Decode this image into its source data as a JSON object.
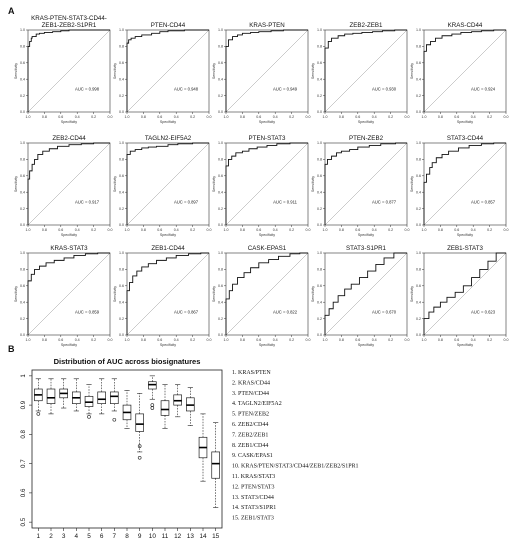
{
  "panel_a_label": "A",
  "panel_b_label": "B",
  "chart_data": [
    {
      "type": "line",
      "panel": "A",
      "xlabel": "Specificity",
      "ylabel": "Sensitivity",
      "xlim": [
        1.0,
        0.0
      ],
      "ylim": [
        0.0,
        1.0
      ],
      "x_ticks": [
        "1.0",
        "0.8",
        "0.6",
        "0.4",
        "0.2",
        "0.0"
      ],
      "y_ticks": [
        "0.0",
        "0.2",
        "0.4",
        "0.6",
        "0.8",
        "1.0"
      ],
      "rocs": [
        {
          "title": "KRAS-PTEN-STAT3-CD44-\nZEB1-ZEB2-S1PR1",
          "auc": "AUC = 0.998",
          "points": [
            [
              1,
              0
            ],
            [
              1,
              0.62
            ],
            [
              0.98,
              0.8
            ],
            [
              0.96,
              0.86
            ],
            [
              0.95,
              0.9
            ],
            [
              0.9,
              0.92
            ],
            [
              0.86,
              0.95
            ],
            [
              0.8,
              0.96
            ],
            [
              0.7,
              0.97
            ],
            [
              0.6,
              0.98
            ],
            [
              0.5,
              0.99
            ],
            [
              0.3,
              1
            ],
            [
              0,
              1
            ]
          ]
        },
        {
          "title": "PTEN-CD44",
          "auc": "AUC = 0.948",
          "points": [
            [
              1,
              0
            ],
            [
              1,
              0.72
            ],
            [
              0.98,
              0.84
            ],
            [
              0.95,
              0.88
            ],
            [
              0.9,
              0.9
            ],
            [
              0.82,
              0.92
            ],
            [
              0.7,
              0.94
            ],
            [
              0.6,
              0.96
            ],
            [
              0.5,
              0.98
            ],
            [
              0.3,
              0.99
            ],
            [
              0.15,
              1
            ],
            [
              0,
              1
            ]
          ]
        },
        {
          "title": "KRAS-PTEN",
          "auc": "AUC = 0.949",
          "points": [
            [
              1,
              0
            ],
            [
              1,
              0.66
            ],
            [
              0.97,
              0.8
            ],
            [
              0.92,
              0.88
            ],
            [
              0.86,
              0.92
            ],
            [
              0.8,
              0.94
            ],
            [
              0.7,
              0.96
            ],
            [
              0.6,
              0.97
            ],
            [
              0.45,
              0.98
            ],
            [
              0.3,
              0.99
            ],
            [
              0.1,
              1
            ],
            [
              0,
              1
            ]
          ]
        },
        {
          "title": "ZEB2-ZEB1",
          "auc": "AUC = 0.930",
          "points": [
            [
              1,
              0
            ],
            [
              1,
              0.7
            ],
            [
              0.96,
              0.78
            ],
            [
              0.92,
              0.86
            ],
            [
              0.84,
              0.9
            ],
            [
              0.76,
              0.93
            ],
            [
              0.66,
              0.95
            ],
            [
              0.55,
              0.96
            ],
            [
              0.42,
              0.97
            ],
            [
              0.3,
              0.98
            ],
            [
              0.15,
              0.99
            ],
            [
              0,
              1
            ]
          ]
        },
        {
          "title": "KRAS-CD44",
          "auc": "AUC = 0.924",
          "points": [
            [
              1,
              0
            ],
            [
              1,
              0.62
            ],
            [
              0.97,
              0.74
            ],
            [
              0.92,
              0.82
            ],
            [
              0.86,
              0.86
            ],
            [
              0.78,
              0.9
            ],
            [
              0.66,
              0.93
            ],
            [
              0.55,
              0.95
            ],
            [
              0.42,
              0.97
            ],
            [
              0.3,
              0.98
            ],
            [
              0.15,
              0.99
            ],
            [
              0,
              1
            ]
          ]
        },
        {
          "title": "ZEB2-CD44",
          "auc": "AUC = 0.917",
          "points": [
            [
              1,
              0
            ],
            [
              1,
              0.4
            ],
            [
              0.98,
              0.56
            ],
            [
              0.95,
              0.66
            ],
            [
              0.92,
              0.74
            ],
            [
              0.88,
              0.8
            ],
            [
              0.82,
              0.86
            ],
            [
              0.74,
              0.9
            ],
            [
              0.64,
              0.93
            ],
            [
              0.5,
              0.96
            ],
            [
              0.35,
              0.98
            ],
            [
              0.2,
              0.99
            ],
            [
              0,
              1
            ]
          ]
        },
        {
          "title": "TAGLN2-EIF5A2",
          "auc": "AUC = 0.897",
          "points": [
            [
              1,
              0
            ],
            [
              1,
              0.78
            ],
            [
              0.96,
              0.86
            ],
            [
              0.9,
              0.9
            ],
            [
              0.82,
              0.92
            ],
            [
              0.74,
              0.94
            ],
            [
              0.64,
              0.95
            ],
            [
              0.5,
              0.96
            ],
            [
              0.38,
              0.98
            ],
            [
              0.2,
              0.99
            ],
            [
              0,
              1
            ]
          ]
        },
        {
          "title": "PTEN-STAT3",
          "auc": "AUC = 0.911",
          "points": [
            [
              1,
              0
            ],
            [
              1,
              0.58
            ],
            [
              0.97,
              0.72
            ],
            [
              0.93,
              0.8
            ],
            [
              0.88,
              0.84
            ],
            [
              0.8,
              0.88
            ],
            [
              0.72,
              0.9
            ],
            [
              0.62,
              0.93
            ],
            [
              0.5,
              0.95
            ],
            [
              0.38,
              0.97
            ],
            [
              0.22,
              0.99
            ],
            [
              0,
              1
            ]
          ]
        },
        {
          "title": "PTEN-ZEB2",
          "auc": "AUC = 0.877",
          "points": [
            [
              1,
              0
            ],
            [
              1,
              0.66
            ],
            [
              0.97,
              0.74
            ],
            [
              0.92,
              0.8
            ],
            [
              0.86,
              0.84
            ],
            [
              0.8,
              0.88
            ],
            [
              0.7,
              0.9
            ],
            [
              0.6,
              0.92
            ],
            [
              0.46,
              0.95
            ],
            [
              0.32,
              0.97
            ],
            [
              0.14,
              0.99
            ],
            [
              0,
              1
            ]
          ]
        },
        {
          "title": "STAT3-CD44",
          "auc": "AUC = 0.857",
          "points": [
            [
              1,
              0
            ],
            [
              1,
              0.38
            ],
            [
              0.97,
              0.52
            ],
            [
              0.93,
              0.62
            ],
            [
              0.9,
              0.7
            ],
            [
              0.85,
              0.76
            ],
            [
              0.78,
              0.82
            ],
            [
              0.7,
              0.86
            ],
            [
              0.58,
              0.9
            ],
            [
              0.45,
              0.94
            ],
            [
              0.3,
              0.97
            ],
            [
              0.15,
              0.99
            ],
            [
              0,
              1
            ]
          ]
        },
        {
          "title": "KRAS-STAT3",
          "auc": "AUC = 0.859",
          "points": [
            [
              1,
              0
            ],
            [
              1,
              0.5
            ],
            [
              0.96,
              0.66
            ],
            [
              0.92,
              0.74
            ],
            [
              0.86,
              0.8
            ],
            [
              0.78,
              0.84
            ],
            [
              0.68,
              0.88
            ],
            [
              0.56,
              0.91
            ],
            [
              0.44,
              0.94
            ],
            [
              0.3,
              0.97
            ],
            [
              0.15,
              0.99
            ],
            [
              0,
              1
            ]
          ]
        },
        {
          "title": "ZEB1-CD44",
          "auc": "AUC = 0.867",
          "points": [
            [
              1,
              0
            ],
            [
              1,
              0.4
            ],
            [
              0.97,
              0.54
            ],
            [
              0.93,
              0.64
            ],
            [
              0.88,
              0.72
            ],
            [
              0.82,
              0.78
            ],
            [
              0.74,
              0.83
            ],
            [
              0.64,
              0.87
            ],
            [
              0.52,
              0.91
            ],
            [
              0.4,
              0.94
            ],
            [
              0.25,
              0.97
            ],
            [
              0.1,
              0.99
            ],
            [
              0,
              1
            ]
          ]
        },
        {
          "title": "CASK-EPAS1",
          "auc": "AUC = 0.822",
          "points": [
            [
              1,
              0
            ],
            [
              1,
              0.3
            ],
            [
              0.96,
              0.44
            ],
            [
              0.92,
              0.54
            ],
            [
              0.86,
              0.62
            ],
            [
              0.78,
              0.7
            ],
            [
              0.7,
              0.76
            ],
            [
              0.6,
              0.82
            ],
            [
              0.48,
              0.88
            ],
            [
              0.36,
              0.92
            ],
            [
              0.22,
              0.96
            ],
            [
              0.1,
              0.99
            ],
            [
              0,
              1
            ]
          ]
        },
        {
          "title": "STAT3-S1PR1",
          "auc": "AUC = 0.670",
          "points": [
            [
              1,
              0
            ],
            [
              1,
              0.14
            ],
            [
              0.95,
              0.24
            ],
            [
              0.9,
              0.32
            ],
            [
              0.84,
              0.4
            ],
            [
              0.76,
              0.48
            ],
            [
              0.68,
              0.56
            ],
            [
              0.58,
              0.62
            ],
            [
              0.48,
              0.7
            ],
            [
              0.38,
              0.78
            ],
            [
              0.28,
              0.86
            ],
            [
              0.16,
              0.94
            ],
            [
              0,
              1
            ]
          ]
        },
        {
          "title": "ZEB1-STAT3",
          "auc": "AUC = 0.623",
          "points": [
            [
              1,
              0
            ],
            [
              1,
              0.12
            ],
            [
              0.94,
              0.2
            ],
            [
              0.88,
              0.28
            ],
            [
              0.8,
              0.34
            ],
            [
              0.72,
              0.4
            ],
            [
              0.62,
              0.46
            ],
            [
              0.52,
              0.52
            ],
            [
              0.42,
              0.6
            ],
            [
              0.32,
              0.7
            ],
            [
              0.22,
              0.8
            ],
            [
              0.12,
              0.9
            ],
            [
              0,
              1
            ]
          ]
        }
      ]
    },
    {
      "type": "box",
      "panel": "B",
      "title": "Distribution of AUC across biosignatures",
      "ylim": [
        0.48,
        1.02
      ],
      "y_ticks": [
        0.5,
        0.6,
        0.7,
        0.8,
        0.9,
        1.0
      ],
      "categories": [
        "1",
        "2",
        "3",
        "4",
        "5",
        "6",
        "7",
        "8",
        "9",
        "10",
        "11",
        "12",
        "13",
        "14",
        "15"
      ],
      "boxes": [
        {
          "whislo": 0.88,
          "q1": 0.915,
          "med": 0.935,
          "q3": 0.955,
          "whishi": 0.99,
          "fliers": [
            0.87
          ]
        },
        {
          "whislo": 0.87,
          "q1": 0.905,
          "med": 0.925,
          "q3": 0.955,
          "whishi": 0.99,
          "fliers": []
        },
        {
          "whislo": 0.89,
          "q1": 0.925,
          "med": 0.94,
          "q3": 0.955,
          "whishi": 0.99,
          "fliers": []
        },
        {
          "whislo": 0.88,
          "q1": 0.905,
          "med": 0.925,
          "q3": 0.945,
          "whishi": 0.99,
          "fliers": []
        },
        {
          "whislo": 0.87,
          "q1": 0.895,
          "med": 0.91,
          "q3": 0.93,
          "whishi": 0.97,
          "fliers": [
            0.86
          ]
        },
        {
          "whislo": 0.87,
          "q1": 0.905,
          "med": 0.92,
          "q3": 0.945,
          "whishi": 0.99,
          "fliers": []
        },
        {
          "whislo": 0.88,
          "q1": 0.905,
          "med": 0.93,
          "q3": 0.945,
          "whishi": 0.99,
          "fliers": [
            0.85
          ]
        },
        {
          "whislo": 0.82,
          "q1": 0.85,
          "med": 0.875,
          "q3": 0.9,
          "whishi": 0.95,
          "fliers": []
        },
        {
          "whislo": 0.74,
          "q1": 0.81,
          "med": 0.835,
          "q3": 0.87,
          "whishi": 0.94,
          "fliers": [
            0.72,
            0.76
          ]
        },
        {
          "whislo": 0.92,
          "q1": 0.955,
          "med": 0.97,
          "q3": 0.98,
          "whishi": 1.0,
          "fliers": [
            0.89,
            0.9
          ]
        },
        {
          "whislo": 0.82,
          "q1": 0.865,
          "med": 0.885,
          "q3": 0.915,
          "whishi": 0.97,
          "fliers": []
        },
        {
          "whislo": 0.86,
          "q1": 0.9,
          "med": 0.915,
          "q3": 0.935,
          "whishi": 0.97,
          "fliers": []
        },
        {
          "whislo": 0.83,
          "q1": 0.88,
          "med": 0.9,
          "q3": 0.925,
          "whishi": 0.96,
          "fliers": []
        },
        {
          "whislo": 0.64,
          "q1": 0.72,
          "med": 0.755,
          "q3": 0.79,
          "whishi": 0.87,
          "fliers": []
        },
        {
          "whislo": 0.55,
          "q1": 0.65,
          "med": 0.7,
          "q3": 0.74,
          "whishi": 0.84,
          "fliers": []
        }
      ],
      "legend": [
        "1. KRAS/PTEN",
        "2. KRAS/CD44",
        "3. PTEN/CD44",
        "4. TAGLN2/EIF5A2",
        "5. PTEN/ZEB2",
        "6. ZEB2/CD44",
        "7. ZEB2/ZEB1",
        "8. ZEB1/CD44",
        "9. CASK/EPAS1",
        "10. KRAS/PTEN/STAT3/CD44/ZEB1/ZEB2/S1PR1",
        "11. KRAS/STAT3",
        "12. PTEN/STAT3",
        "13. STAT3/CD44",
        "14. STAT3/S1PR1",
        "15. ZEB1/STAT3"
      ]
    }
  ]
}
